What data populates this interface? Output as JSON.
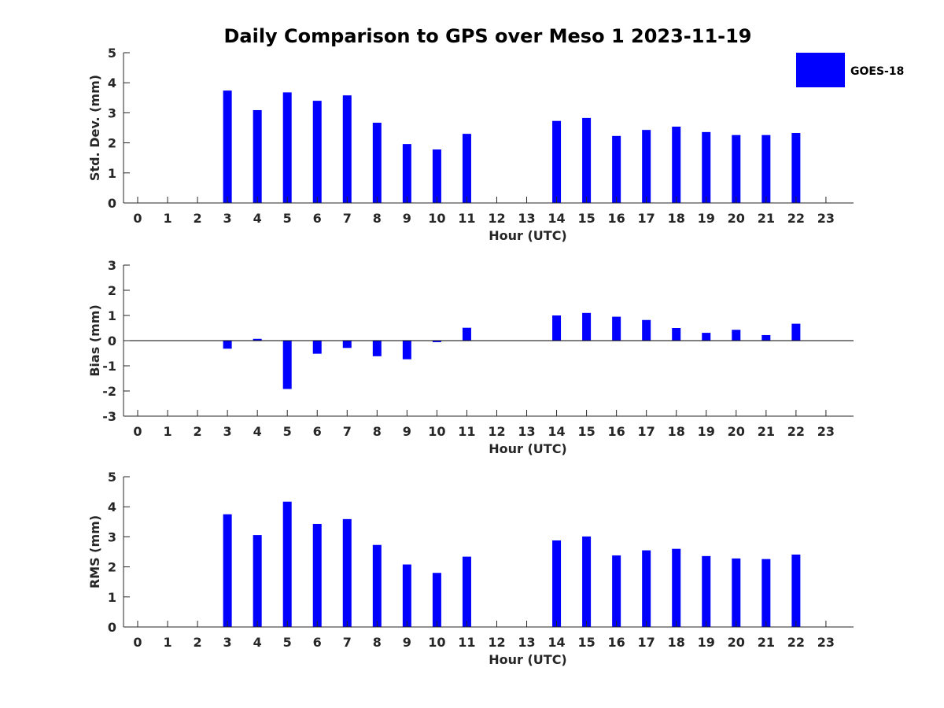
{
  "title": "Daily Comparison to GPS over Meso 1 2023-11-19",
  "legend": {
    "label": "GOES-18",
    "color": "#0000ff"
  },
  "colors": {
    "bar": "#0000ff",
    "axis": "#262626"
  },
  "chart_data": [
    {
      "type": "bar",
      "name": "std-dev",
      "title": "Daily Comparison to GPS over Meso 1 2023-11-19",
      "xlabel": "Hour (UTC)",
      "ylabel": "Std. Dev. (mm)",
      "ylim": [
        0,
        5
      ],
      "yticks": [
        0,
        1,
        2,
        3,
        4,
        5
      ],
      "categories": [
        "0",
        "1",
        "2",
        "3",
        "4",
        "5",
        "6",
        "7",
        "8",
        "9",
        "10",
        "11",
        "12",
        "13",
        "14",
        "15",
        "16",
        "17",
        "18",
        "19",
        "20",
        "21",
        "22",
        "23"
      ],
      "series": [
        {
          "name": "GOES-18",
          "values": [
            null,
            null,
            null,
            3.74,
            3.09,
            3.68,
            3.4,
            3.58,
            2.67,
            1.96,
            1.78,
            2.3,
            null,
            null,
            2.73,
            2.83,
            2.23,
            2.43,
            2.54,
            2.36,
            2.26,
            2.26,
            2.33,
            null
          ]
        }
      ]
    },
    {
      "type": "bar",
      "name": "bias",
      "xlabel": "Hour (UTC)",
      "ylabel": "Bias (mm)",
      "ylim": [
        -3,
        3
      ],
      "yticks": [
        -3,
        -2,
        -1,
        0,
        1,
        2,
        3
      ],
      "categories": [
        "0",
        "1",
        "2",
        "3",
        "4",
        "5",
        "6",
        "7",
        "8",
        "9",
        "10",
        "11",
        "12",
        "13",
        "14",
        "15",
        "16",
        "17",
        "18",
        "19",
        "20",
        "21",
        "22",
        "23"
      ],
      "series": [
        {
          "name": "GOES-18",
          "values": [
            null,
            null,
            null,
            -0.32,
            0.07,
            -1.92,
            -0.52,
            -0.29,
            -0.62,
            -0.74,
            -0.06,
            0.51,
            null,
            null,
            1.0,
            1.1,
            0.95,
            0.82,
            0.5,
            0.31,
            0.43,
            0.22,
            0.67,
            null
          ]
        }
      ]
    },
    {
      "type": "bar",
      "name": "rms",
      "xlabel": "Hour (UTC)",
      "ylabel": "RMS (mm)",
      "ylim": [
        0,
        5
      ],
      "yticks": [
        0,
        1,
        2,
        3,
        4,
        5
      ],
      "categories": [
        "0",
        "1",
        "2",
        "3",
        "4",
        "5",
        "6",
        "7",
        "8",
        "9",
        "10",
        "11",
        "12",
        "13",
        "14",
        "15",
        "16",
        "17",
        "18",
        "19",
        "20",
        "21",
        "22",
        "23"
      ],
      "series": [
        {
          "name": "GOES-18",
          "values": [
            null,
            null,
            null,
            3.75,
            3.06,
            4.17,
            3.43,
            3.59,
            2.73,
            2.08,
            1.8,
            2.34,
            null,
            null,
            2.88,
            3.01,
            2.38,
            2.55,
            2.6,
            2.36,
            2.28,
            2.26,
            2.41,
            null
          ]
        }
      ]
    }
  ]
}
